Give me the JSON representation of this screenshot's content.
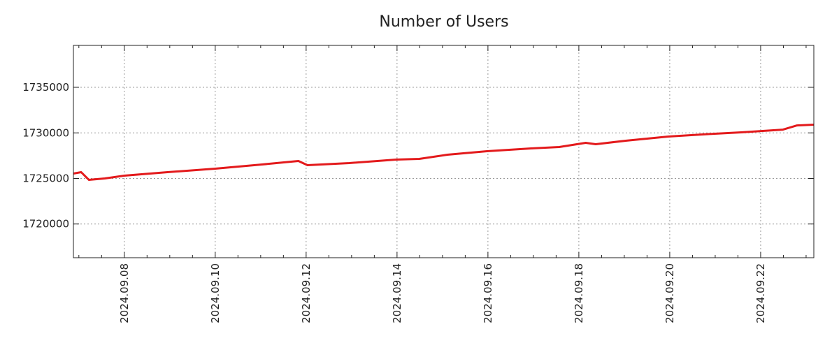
{
  "chart_data": {
    "type": "line",
    "title": "Number of Users",
    "xlabel": "",
    "ylabel": "",
    "x_unit": "days since 2024-09-08",
    "xlim": [
      -1.12,
      15.17
    ],
    "ylim": [
      1716300,
      1739600
    ],
    "grid": true,
    "line_color": "#e31a1c",
    "y_ticks": [
      1720000,
      1725000,
      1730000,
      1735000
    ],
    "y_tick_labels": [
      "1720000",
      "1725000",
      "1730000",
      "1735000"
    ],
    "x_ticks": [
      0,
      2,
      4,
      6,
      8,
      10,
      12,
      14
    ],
    "x_tick_labels": [
      "2024.09.08",
      "2024.09.10",
      "2024.09.12",
      "2024.09.14",
      "2024.09.16",
      "2024.09.18",
      "2024.09.20",
      "2024.09.22"
    ],
    "series": [
      {
        "name": "Number of Users",
        "x": [
          -1.12,
          -0.95,
          -0.78,
          -0.43,
          0,
          0.95,
          2,
          3.03,
          3.83,
          4.03,
          4.95,
          5.98,
          6.49,
          7.11,
          7.98,
          8.95,
          9.57,
          10.15,
          10.37,
          11.03,
          11.97,
          12.95,
          13.57,
          14.49,
          14.8,
          15.17
        ],
        "values": [
          1725536,
          1725690,
          1724847,
          1725000,
          1725306,
          1725690,
          1726072,
          1726532,
          1726915,
          1726455,
          1726685,
          1727067,
          1727144,
          1727604,
          1727986,
          1728293,
          1728446,
          1728905,
          1728752,
          1729135,
          1729595,
          1729900,
          1730054,
          1730360,
          1730820,
          1730900
        ]
      }
    ]
  }
}
